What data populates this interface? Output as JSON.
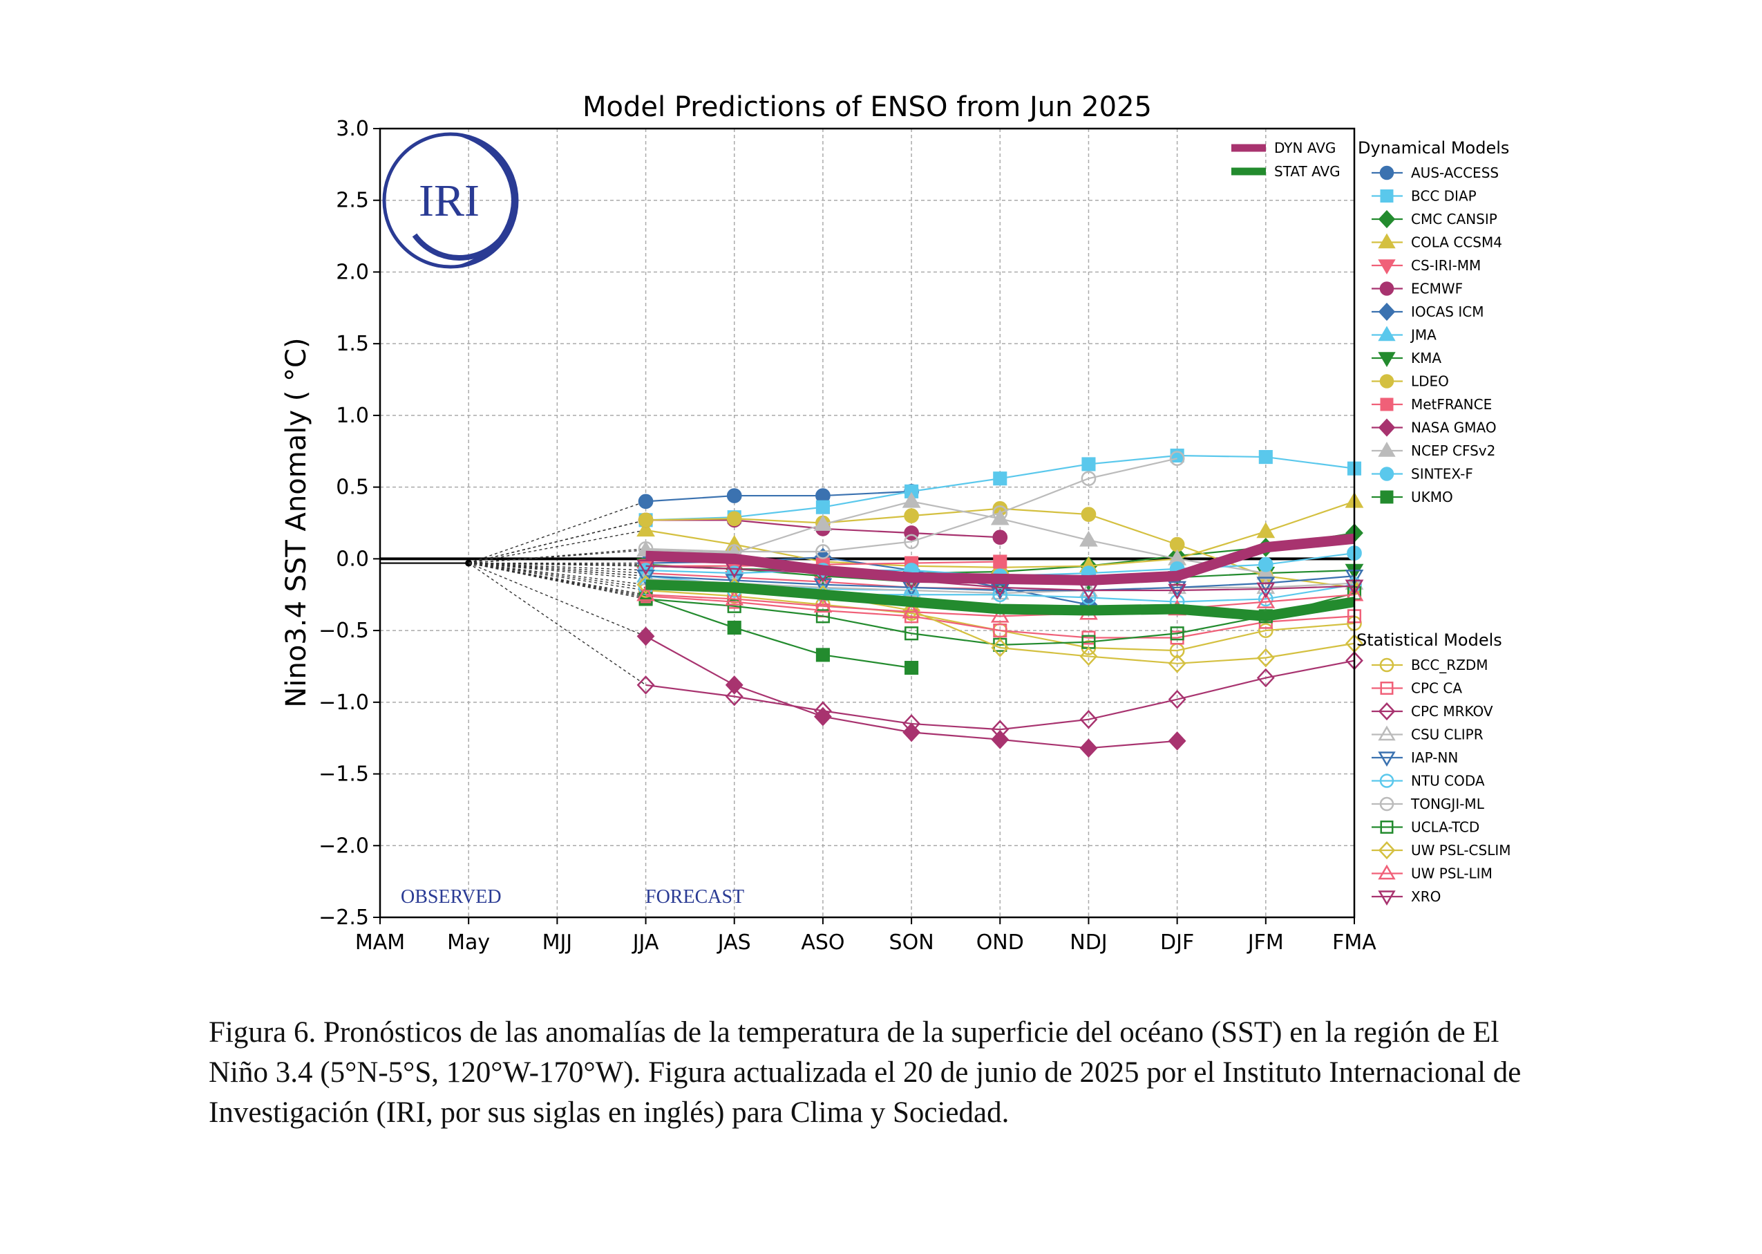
{
  "chart_data": {
    "type": "line",
    "title": "Model Predictions of ENSO from Jun 2025",
    "ylabel": "Nino3.4 SST Anomaly ( °C)",
    "xlabel": "",
    "categories": [
      "MAM",
      "May",
      "MJJ",
      "JJA",
      "JAS",
      "ASO",
      "SON",
      "OND",
      "NDJ",
      "DJF",
      "JFM",
      "FMA"
    ],
    "ylim": [
      -2.5,
      3.0
    ],
    "yticks": [
      "3.0",
      "2.5",
      "2.0",
      "1.5",
      "1.0",
      "0.5",
      "0.0",
      "−0.5",
      "−1.0",
      "−1.5",
      "−2.0",
      "−2.5"
    ],
    "grid": true,
    "region_labels": {
      "observed": "OBSERVED",
      "forecast": "FORECAST"
    },
    "logo_text": "IRI",
    "observed": [
      -0.03,
      -0.03
    ],
    "avg_series": [
      {
        "name": "DYN AVG",
        "color": "#a8336f",
        "values": [
          null,
          null,
          null,
          0.02,
          0.0,
          -0.08,
          -0.13,
          -0.14,
          -0.15,
          -0.12,
          0.08,
          0.14
        ]
      },
      {
        "name": "STAT AVG",
        "color": "#238b2e",
        "values": [
          null,
          null,
          null,
          -0.18,
          -0.2,
          -0.25,
          -0.3,
          -0.35,
          -0.36,
          -0.35,
          -0.4,
          -0.3
        ]
      }
    ],
    "dynamical_header": "Dynamical Models",
    "dynamical": [
      {
        "name": "AUS-ACCESS",
        "color": "#3b72b0",
        "marker": "circle",
        "filled": true,
        "values": [
          null,
          null,
          null,
          0.4,
          0.44,
          0.44,
          0.47,
          null,
          null,
          null,
          null,
          null
        ]
      },
      {
        "name": "BCC DIAP",
        "color": "#5ac8ec",
        "marker": "square",
        "filled": true,
        "values": [
          null,
          null,
          null,
          0.27,
          0.29,
          0.36,
          0.47,
          0.56,
          0.66,
          0.72,
          0.71,
          0.63
        ]
      },
      {
        "name": "CMC CANSIP",
        "color": "#238b2e",
        "marker": "diamond",
        "filled": true,
        "values": [
          null,
          null,
          null,
          -0.05,
          -0.07,
          -0.08,
          -0.1,
          -0.09,
          -0.05,
          0.02,
          0.08,
          0.18
        ]
      },
      {
        "name": "COLA CCSM4",
        "color": "#d4c040",
        "marker": "triangle-up",
        "filled": true,
        "values": [
          null,
          null,
          null,
          0.2,
          0.1,
          -0.02,
          -0.05,
          -0.06,
          -0.05,
          0.0,
          0.19,
          0.4
        ]
      },
      {
        "name": "CS-IRI-MM",
        "color": "#f06078",
        "marker": "triangle-down",
        "filled": true,
        "values": [
          null,
          null,
          null,
          -0.1,
          -0.13,
          -0.16,
          -0.2,
          -0.21,
          null,
          null,
          null,
          null
        ]
      },
      {
        "name": "ECMWF",
        "color": "#a8336f",
        "marker": "circle",
        "filled": true,
        "values": [
          null,
          null,
          null,
          0.27,
          0.27,
          0.21,
          0.18,
          0.15,
          null,
          null,
          null,
          null
        ]
      },
      {
        "name": "IOCAS ICM",
        "color": "#3b72b0",
        "marker": "diamond",
        "filled": true,
        "values": [
          null,
          null,
          null,
          -0.03,
          -0.02,
          0.01,
          -0.08,
          -0.2,
          -0.32,
          null,
          null,
          null
        ]
      },
      {
        "name": "JMA",
        "color": "#5ac8ec",
        "marker": "triangle-up",
        "filled": true,
        "values": [
          null,
          null,
          null,
          -0.12,
          -0.18,
          -0.21,
          -0.22,
          null,
          null,
          null,
          null,
          null
        ]
      },
      {
        "name": "KMA",
        "color": "#238b2e",
        "marker": "triangle-down",
        "filled": true,
        "values": [
          null,
          null,
          null,
          -0.04,
          -0.07,
          -0.12,
          -0.16,
          -0.17,
          -0.16,
          -0.13,
          -0.1,
          -0.08
        ]
      },
      {
        "name": "LDEO",
        "color": "#d4c040",
        "marker": "circle",
        "filled": true,
        "values": [
          null,
          null,
          null,
          0.27,
          0.28,
          0.25,
          0.3,
          0.35,
          0.31,
          0.1,
          -0.12,
          -0.2
        ]
      },
      {
        "name": "MetFRANCE",
        "color": "#f06078",
        "marker": "square",
        "filled": true,
        "values": [
          null,
          null,
          null,
          -0.05,
          -0.05,
          -0.04,
          -0.03,
          -0.02,
          null,
          null,
          null,
          null
        ]
      },
      {
        "name": "NASA GMAO",
        "color": "#a8336f",
        "marker": "diamond",
        "filled": true,
        "values": [
          null,
          null,
          null,
          -0.54,
          -0.88,
          -1.1,
          -1.21,
          -1.26,
          -1.32,
          -1.27,
          null,
          null
        ]
      },
      {
        "name": "NCEP CFSv2",
        "color": "#bbbbbb",
        "marker": "triangle-up",
        "filled": true,
        "values": [
          null,
          null,
          null,
          0.06,
          0.04,
          0.24,
          0.4,
          0.28,
          0.13,
          0.0,
          -0.1,
          null
        ]
      },
      {
        "name": "SINTEX-F",
        "color": "#5ac8ec",
        "marker": "circle",
        "filled": true,
        "values": [
          null,
          null,
          null,
          -0.08,
          -0.1,
          -0.08,
          -0.08,
          -0.12,
          -0.1,
          -0.07,
          -0.04,
          0.04
        ]
      },
      {
        "name": "UKMO",
        "color": "#238b2e",
        "marker": "square",
        "filled": true,
        "values": [
          null,
          null,
          null,
          -0.27,
          -0.48,
          -0.67,
          -0.76,
          null,
          null,
          null,
          null,
          null
        ]
      }
    ],
    "statistical_header": "Statistical Models",
    "statistical": [
      {
        "name": "BCC_RZDM",
        "color": "#d4c040",
        "marker": "circle",
        "filled": false,
        "values": [
          null,
          null,
          null,
          -0.22,
          -0.26,
          -0.32,
          -0.38,
          -0.5,
          -0.62,
          -0.64,
          -0.5,
          -0.45
        ]
      },
      {
        "name": "CPC CA",
        "color": "#f06078",
        "marker": "square",
        "filled": false,
        "values": [
          null,
          null,
          null,
          -0.26,
          -0.3,
          -0.36,
          -0.4,
          -0.5,
          -0.55,
          -0.55,
          -0.44,
          -0.4
        ]
      },
      {
        "name": "CPC MRKOV",
        "color": "#a8336f",
        "marker": "diamond",
        "filled": false,
        "values": [
          null,
          null,
          null,
          -0.88,
          -0.96,
          -1.06,
          -1.15,
          -1.19,
          -1.12,
          -0.98,
          -0.83,
          -0.71
        ]
      },
      {
        "name": "CSU CLIPR",
        "color": "#bbbbbb",
        "marker": "triangle-up",
        "filled": false,
        "values": [
          null,
          null,
          null,
          -0.14,
          -0.17,
          -0.2,
          -0.22,
          -0.24,
          -0.22,
          -0.2,
          -0.2,
          -0.17
        ]
      },
      {
        "name": "IAP-NN",
        "color": "#3b72b0",
        "marker": "triangle-down",
        "filled": false,
        "values": [
          null,
          null,
          null,
          -0.12,
          -0.15,
          -0.18,
          -0.2,
          -0.22,
          -0.22,
          -0.2,
          -0.17,
          -0.12
        ]
      },
      {
        "name": "NTU CODA",
        "color": "#5ac8ec",
        "marker": "circle",
        "filled": false,
        "values": [
          null,
          null,
          null,
          -0.2,
          -0.22,
          -0.25,
          -0.25,
          -0.25,
          -0.27,
          -0.3,
          -0.28,
          -0.18
        ]
      },
      {
        "name": "TONGJI-ML",
        "color": "#bbbbbb",
        "marker": "circle",
        "filled": false,
        "values": [
          null,
          null,
          null,
          0.07,
          0.05,
          0.05,
          0.12,
          0.32,
          0.56,
          0.7,
          null,
          null
        ]
      },
      {
        "name": "UCLA-TCD",
        "color": "#238b2e",
        "marker": "square",
        "filled": false,
        "values": [
          null,
          null,
          null,
          -0.28,
          -0.33,
          -0.4,
          -0.52,
          -0.6,
          -0.58,
          -0.52,
          -0.4,
          -0.24
        ]
      },
      {
        "name": "UW PSL-CSLIM",
        "color": "#d4c040",
        "marker": "diamond",
        "filled": false,
        "values": [
          null,
          null,
          null,
          -0.18,
          -0.2,
          -0.25,
          -0.36,
          -0.62,
          -0.68,
          -0.73,
          -0.69,
          -0.59
        ]
      },
      {
        "name": "UW PSL-LIM",
        "color": "#f06078",
        "marker": "triangle-up",
        "filled": false,
        "values": [
          null,
          null,
          null,
          -0.25,
          -0.28,
          -0.33,
          -0.37,
          -0.4,
          -0.38,
          -0.35,
          -0.3,
          -0.25
        ]
      },
      {
        "name": "XRO",
        "color": "#a8336f",
        "marker": "triangle-down",
        "filled": false,
        "values": [
          null,
          null,
          null,
          -0.05,
          -0.07,
          -0.1,
          -0.15,
          -0.2,
          -0.22,
          -0.22,
          -0.21,
          -0.19
        ]
      }
    ]
  },
  "caption": "Figura 6. Pronósticos de las anomalías de la temperatura de la superficie del océano (SST) en la región de El Niño 3.4 (5°N-5°S, 120°W-170°W). Figura actualizada el 20 de junio de 2025 por el Instituto Internacional de Investigación (IRI, por sus siglas en inglés) para Clima y Sociedad."
}
